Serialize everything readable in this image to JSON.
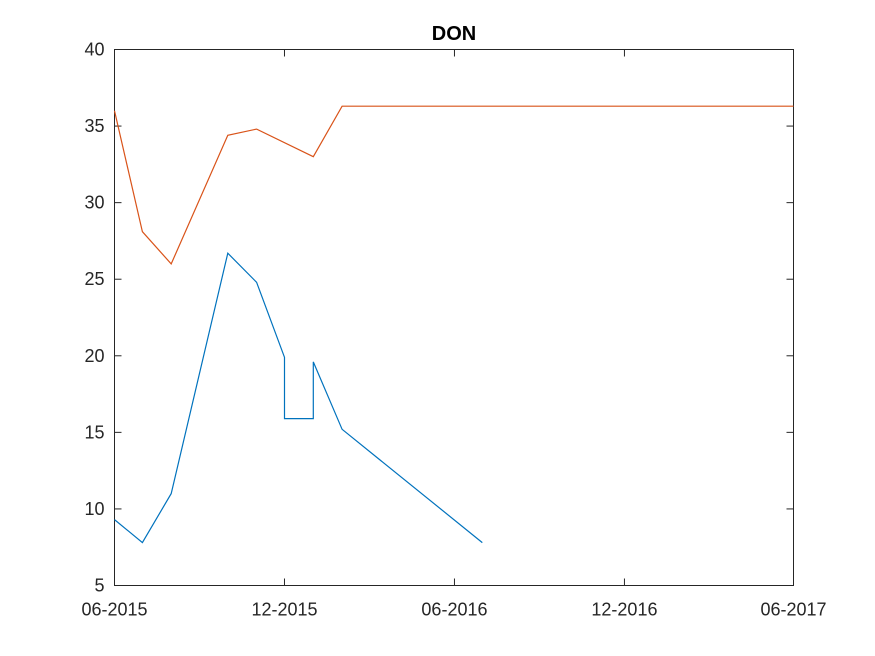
{
  "chart_data": {
    "type": "line",
    "title": "DON",
    "xlabel": "",
    "ylabel": "",
    "xlim": [
      "2015-06-01",
      "2017-06-01"
    ],
    "ylim": [
      5,
      40
    ],
    "xticks": [
      {
        "date": "2015-06-01",
        "label": "06-2015"
      },
      {
        "date": "2015-12-01",
        "label": "12-2015"
      },
      {
        "date": "2016-06-01",
        "label": "06-2016"
      },
      {
        "date": "2016-12-01",
        "label": "12-2016"
      },
      {
        "date": "2017-06-01",
        "label": "06-2017"
      }
    ],
    "yticks": [
      5,
      10,
      15,
      20,
      25,
      30,
      35,
      40
    ],
    "grid": false,
    "series": [
      {
        "color": "#0072BD",
        "x": [
          "2015-06-01",
          "2015-07-01",
          "2015-08-01",
          "2015-10-01",
          "2015-11-01",
          "2015-12-01",
          "2015-12-01",
          "2016-01-01",
          "2016-01-01",
          "2016-02-01",
          "2016-07-01"
        ],
        "y": [
          9.3,
          7.8,
          11.0,
          26.7,
          24.8,
          19.9,
          15.9,
          15.9,
          19.6,
          15.2,
          7.8
        ]
      },
      {
        "color": "#D95319",
        "x": [
          "2015-06-01",
          "2015-07-01",
          "2015-08-01",
          "2015-10-01",
          "2015-11-01",
          "2016-01-01",
          "2016-02-01",
          "2017-06-01"
        ],
        "y": [
          36.0,
          28.1,
          26.0,
          34.4,
          34.8,
          33.0,
          36.3,
          36.3
        ]
      }
    ]
  }
}
